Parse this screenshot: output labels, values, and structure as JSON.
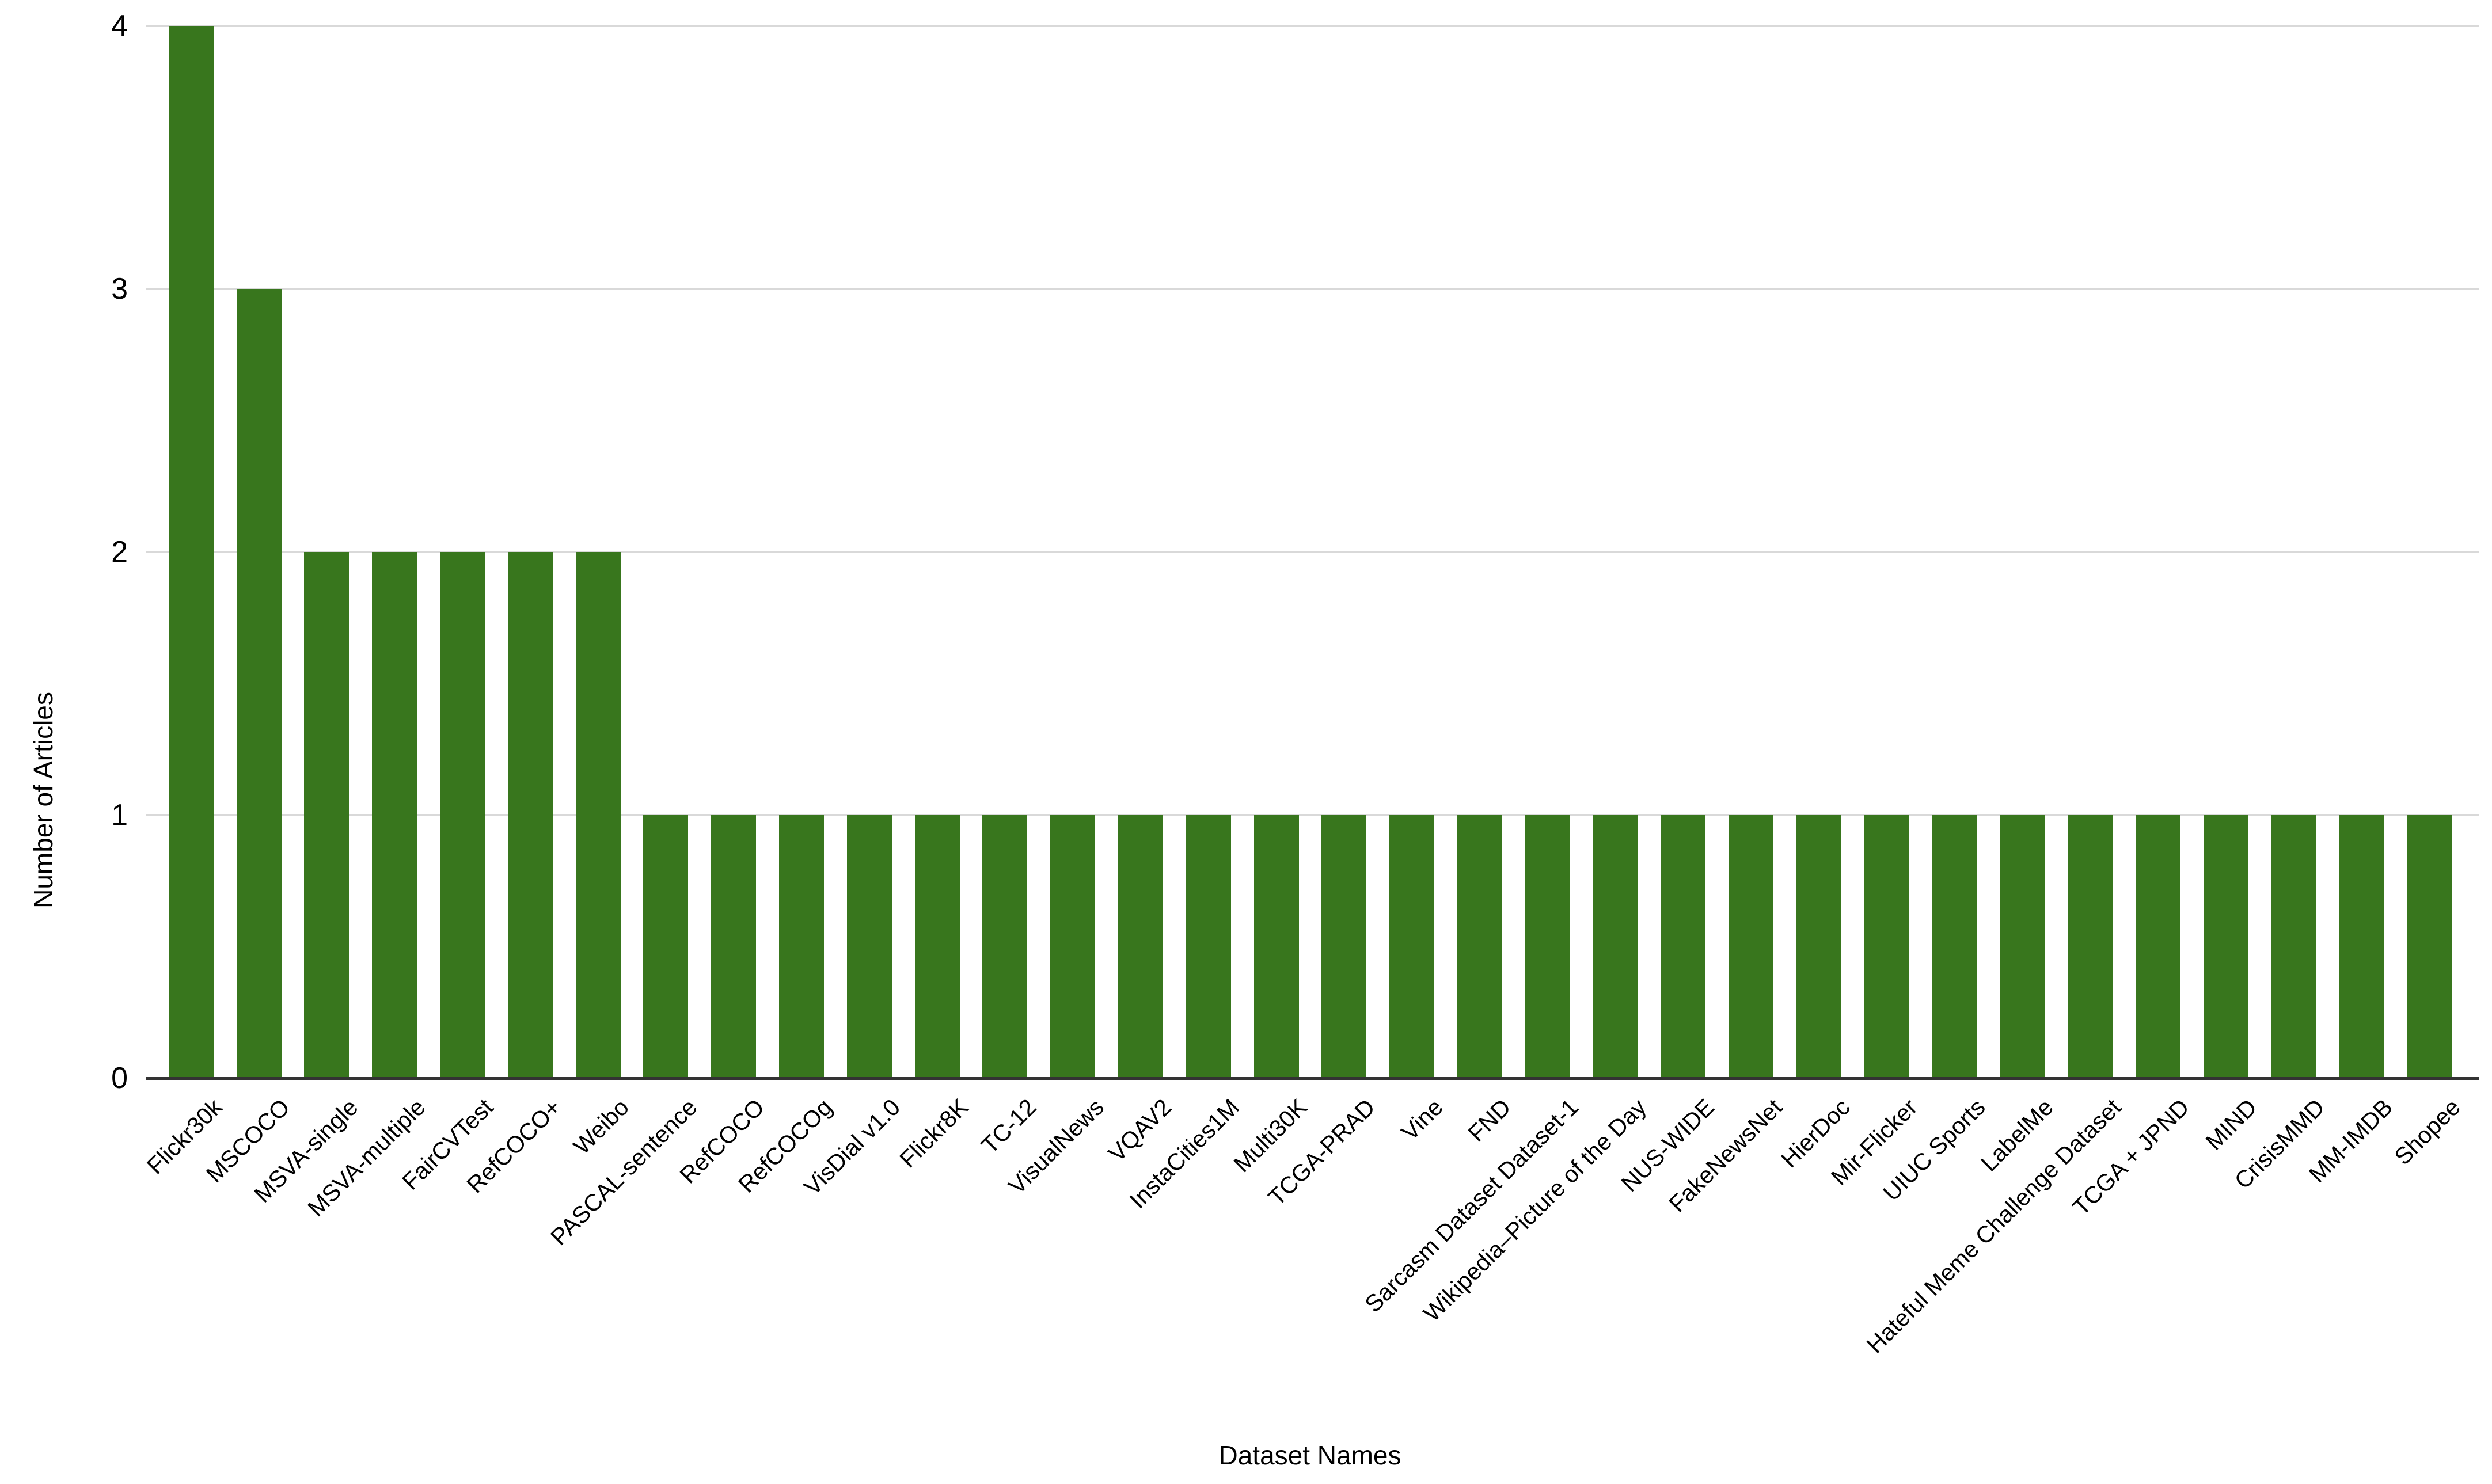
{
  "chart_data": {
    "type": "bar",
    "title": "",
    "xlabel": "Dataset Names",
    "ylabel": "Number of Articles",
    "categories": [
      "Flickr30k",
      "MSCOCO",
      "MSVA-single",
      "MSVA-multiple",
      "FairCVTest",
      "RefCOCO+",
      "Weibo",
      "PASCAL-sentence",
      "RefCOCO",
      "RefCOCOg",
      "VisDial v1.0",
      "Flickr8K",
      "TC-12",
      "VisualNews",
      "VQAV2",
      "InstaCities1M",
      "Multi30K",
      "TCGA-PRAD",
      "Vine",
      "FND",
      "Sarcasm Dataset Dataset-1",
      "Wikipedia–Picture of the Day",
      "NUS-WIDE",
      "FakeNewsNet",
      "HierDoc",
      "Mir-Flicker",
      "UIUC Sports",
      "LabelMe",
      "Hateful Meme Challenge Dataset",
      "TCGA + JPND",
      "MIND",
      "CrisisMMD",
      "MM-IMDB",
      "Shopee"
    ],
    "values": [
      4,
      3,
      2,
      2,
      2,
      2,
      2,
      1,
      1,
      1,
      1,
      1,
      1,
      1,
      1,
      1,
      1,
      1,
      1,
      1,
      1,
      1,
      1,
      1,
      1,
      1,
      1,
      1,
      1,
      1,
      1,
      1,
      1,
      1
    ],
    "ylim": [
      0,
      4
    ],
    "yticks": [
      0,
      1,
      2,
      3,
      4
    ],
    "grid": true,
    "legend_position": "none",
    "x_label_rotation_deg": 45,
    "colors": {
      "bar": "#38761d",
      "gridline": "#d9d9d9",
      "axis_line": "#333333",
      "text": "#000000",
      "background": "#ffffff"
    }
  }
}
